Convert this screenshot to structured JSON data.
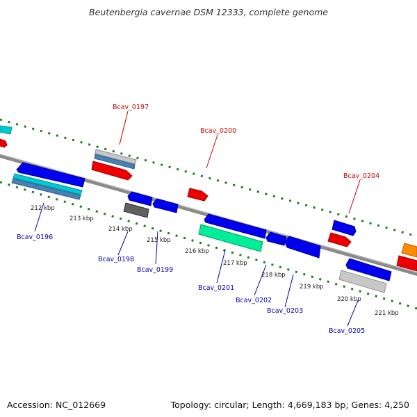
{
  "title": "Beutenbergia cavernae DSM 12333, complete genome",
  "accession_text": "Accession: NC_012669",
  "summary_text": "Topology: circular; Length: 4,669,183 bp; Genes: 4,250",
  "colors": {
    "backbone": "#808080",
    "tick": "#1e7d1e",
    "label_forward": "#cc0000",
    "label_reverse": "#0000b3",
    "gene_blue": "#0000ee",
    "gene_red": "#ee0000",
    "gene_cyan": "#00c8d2",
    "gene_teal": "#00ee99",
    "gene_steel": "#4682b4",
    "gene_gray": "#9a9a9a",
    "gene_lightgray": "#c8c8c8",
    "gene_darkgray": "#606060",
    "gene_orange": "#ff8c00"
  },
  "kbp_labels": [
    "212 kbp",
    "213 kbp",
    "214 kbp",
    "215 kbp",
    "216 kbp",
    "217 kbp",
    "218 kbp",
    "219 kbp",
    "220 kbp",
    "221 kbp"
  ],
  "genes_forward": [
    "Bcav_0197",
    "Bcav_0200",
    "Bcav_0204"
  ],
  "genes_reverse": [
    "Bcav_0196",
    "Bcav_0198",
    "Bcav_0199",
    "Bcav_0201",
    "Bcav_0202",
    "Bcav_0203",
    "Bcav_0205"
  ]
}
